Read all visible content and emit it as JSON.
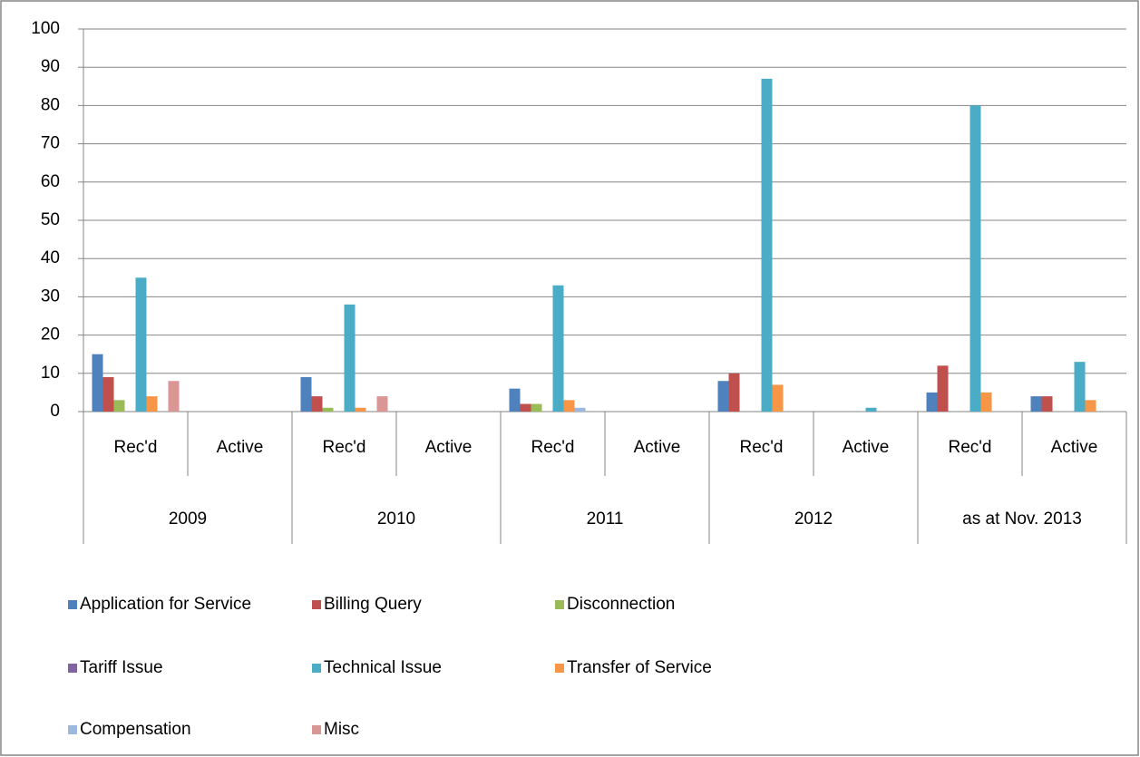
{
  "chart_data": {
    "type": "bar",
    "categories": [
      "Rec'd",
      "Active",
      "Rec'd",
      "Active",
      "Rec'd",
      "Active",
      "Rec'd",
      "Active",
      "Rec'd",
      "Active"
    ],
    "groups": [
      "2009",
      "2010",
      "2011",
      "2012",
      "as at Nov. 2013"
    ],
    "series": [
      {
        "name": "Application for Service",
        "color": "#4f81bd",
        "values": [
          15,
          0,
          9,
          0,
          6,
          0,
          8,
          0,
          5,
          4
        ]
      },
      {
        "name": "Billing Query",
        "color": "#c0504d",
        "values": [
          9,
          0,
          4,
          0,
          2,
          0,
          10,
          0,
          12,
          4
        ]
      },
      {
        "name": "Disconnection",
        "color": "#9bbb59",
        "values": [
          3,
          0,
          1,
          0,
          2,
          0,
          0,
          0,
          0,
          0
        ]
      },
      {
        "name": "Tariff Issue",
        "color": "#8064a2",
        "values": [
          0,
          0,
          0,
          0,
          0,
          0,
          0,
          0,
          0,
          0
        ]
      },
      {
        "name": "Technical Issue",
        "color": "#4bacc6",
        "values": [
          35,
          0,
          28,
          0,
          33,
          0,
          87,
          1,
          80,
          13
        ]
      },
      {
        "name": "Transfer of Service",
        "color": "#f79646",
        "values": [
          4,
          0,
          1,
          0,
          3,
          0,
          7,
          0,
          5,
          3
        ]
      },
      {
        "name": "Compensation",
        "color": "#9db8dd",
        "values": [
          0,
          0,
          0,
          0,
          1,
          0,
          0,
          0,
          0,
          0
        ]
      },
      {
        "name": "Misc",
        "color": "#d99694",
        "values": [
          8,
          0,
          4,
          0,
          0,
          0,
          0,
          0,
          0,
          0
        ]
      }
    ],
    "ylim": [
      0,
      100
    ],
    "yticks": [
      0,
      10,
      20,
      30,
      40,
      50,
      60,
      70,
      80,
      90,
      100
    ],
    "grid": true,
    "legend": "bottom"
  }
}
